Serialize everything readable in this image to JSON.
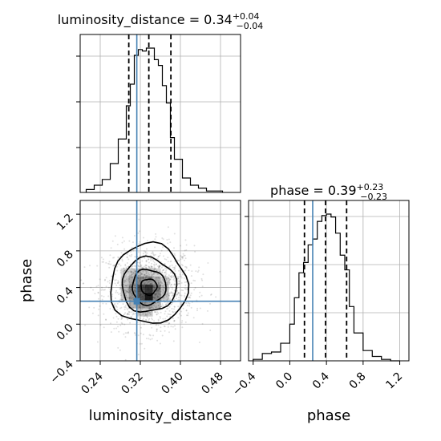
{
  "chart_data": {
    "type": "corner",
    "parameters": [
      "luminosity_distance",
      "phase"
    ],
    "true_values": {
      "luminosity_distance": 0.313,
      "phase": 0.25
    },
    "marginals": [
      {
        "parameter": "luminosity_distance",
        "title_prefix": "luminosity_distance = 0.34",
        "median": "0.34",
        "plus": "+0.04",
        "minus": "−0.04",
        "quantiles": [
          0.297,
          0.337,
          0.381
        ],
        "xlim": [
          0.2,
          0.52
        ],
        "bins": [
          0.212,
          0.228,
          0.244,
          0.26,
          0.276,
          0.292,
          0.3,
          0.308,
          0.316,
          0.324,
          0.332,
          0.34,
          0.348,
          0.356,
          0.364,
          0.372,
          0.38,
          0.388,
          0.404,
          0.42,
          0.436,
          0.452,
          0.468,
          0.484
        ],
        "counts": [
          0.02,
          0.05,
          0.09,
          0.2,
          0.37,
          0.6,
          0.75,
          0.95,
          0.99,
          0.98,
          1.0,
          1.0,
          0.92,
          0.88,
          0.74,
          0.62,
          0.38,
          0.23,
          0.1,
          0.05,
          0.03,
          0.01,
          0.01
        ]
      },
      {
        "parameter": "phase",
        "title_prefix": "phase = 0.39",
        "median": "0.39",
        "plus": "+0.23",
        "minus": "−0.23",
        "quantiles": [
          0.16,
          0.39,
          0.62
        ],
        "xlim": [
          -0.45,
          1.3
        ],
        "bins": [
          -0.4,
          -0.3,
          -0.2,
          -0.1,
          0.0,
          0.05,
          0.1,
          0.15,
          0.2,
          0.25,
          0.3,
          0.35,
          0.4,
          0.45,
          0.5,
          0.55,
          0.6,
          0.65,
          0.7,
          0.8,
          0.9,
          1.0,
          1.1,
          1.2
        ],
        "counts": [
          0.01,
          0.05,
          0.06,
          0.12,
          0.25,
          0.43,
          0.6,
          0.67,
          0.79,
          0.83,
          0.95,
          0.99,
          1.0,
          0.98,
          0.87,
          0.72,
          0.62,
          0.37,
          0.19,
          0.07,
          0.03,
          0.01,
          0.0
        ]
      }
    ],
    "joint": {
      "x_parameter": "luminosity_distance",
      "y_parameter": "phase",
      "xlim": [
        0.2,
        0.52
      ],
      "ylim": [
        -0.4,
        1.35
      ],
      "center": [
        0.337,
        0.39
      ],
      "std": [
        0.045,
        0.23
      ]
    },
    "axes": {
      "x_ticks_luminosity_distance": [
        "0.24",
        "0.32",
        "0.40",
        "0.48"
      ],
      "x_ticks_phase": [
        "−0.4",
        "0.0",
        "0.4",
        "0.8",
        "1.2"
      ],
      "y_ticks_phase": [
        "−0.4",
        "0.0",
        "0.4",
        "0.8",
        "1.2"
      ],
      "xlabel_left": "luminosity_distance",
      "xlabel_right": "phase",
      "ylabel": "phase"
    },
    "grid": true,
    "colors": {
      "hist": "#000000",
      "truth": "#4682b4",
      "quantile": "#000000",
      "grid": "#b0b0b0"
    }
  }
}
